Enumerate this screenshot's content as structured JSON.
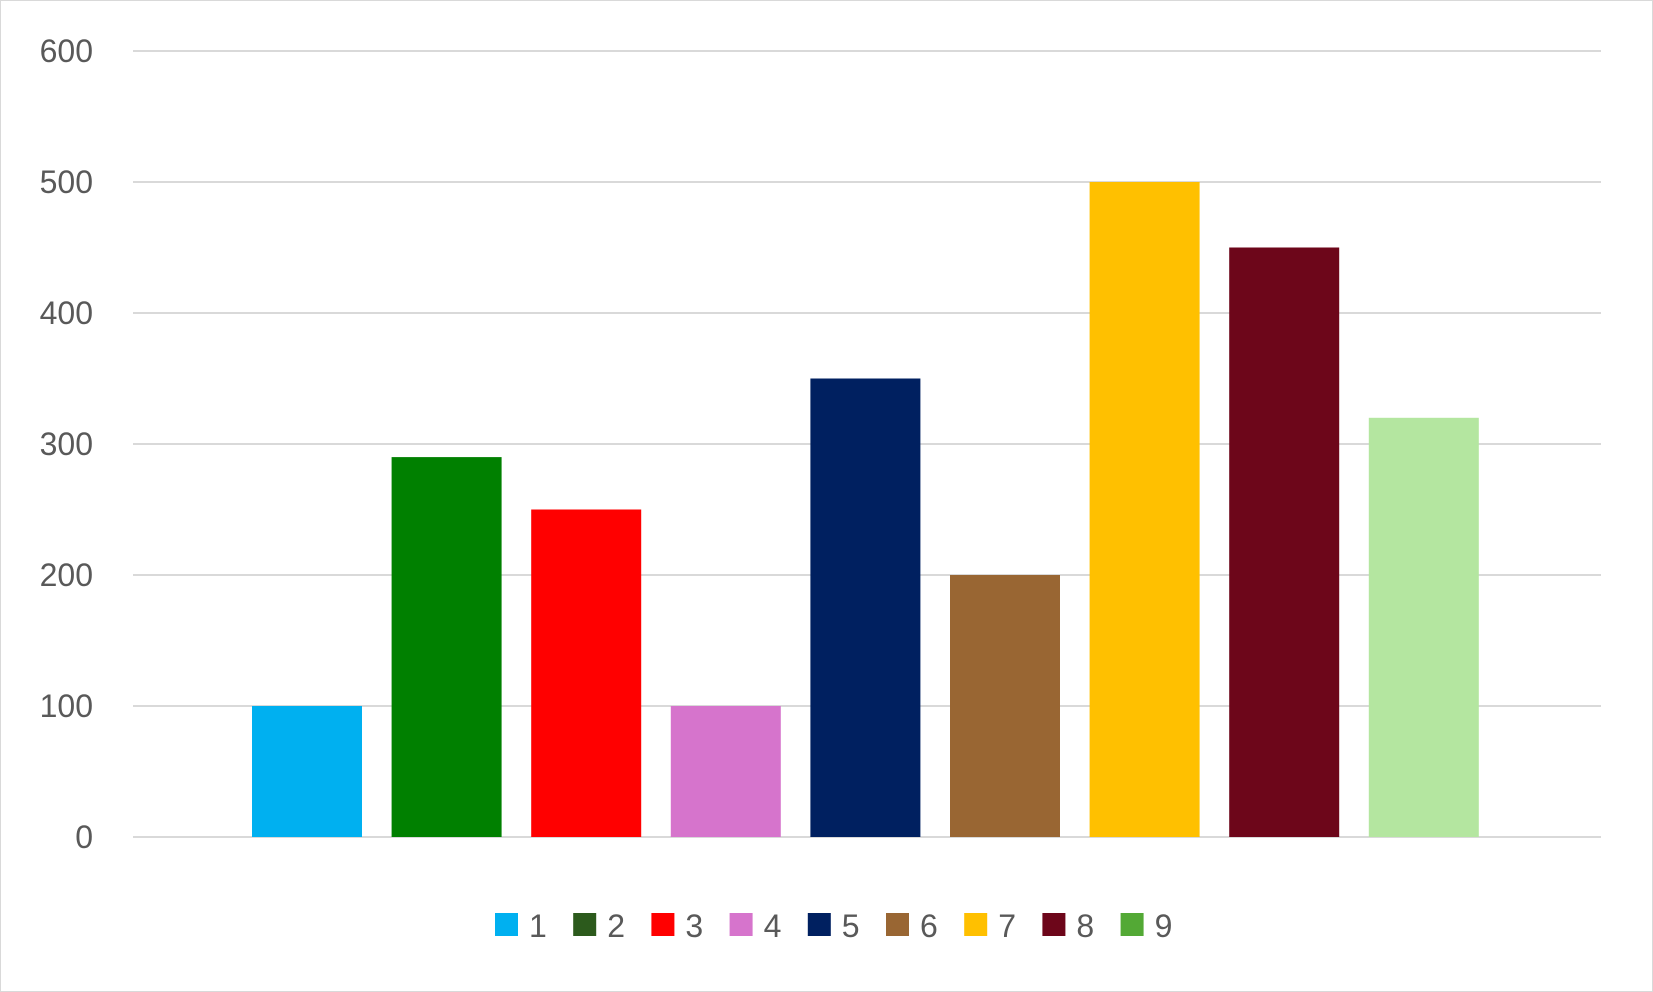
{
  "chart_data": {
    "type": "bar",
    "title": "",
    "xlabel": "",
    "ylabel": "",
    "ylim": [
      0,
      600
    ],
    "yticks": [
      0,
      100,
      200,
      300,
      400,
      500,
      600
    ],
    "grid": true,
    "legend_position": "bottom",
    "series": [
      {
        "name": "1",
        "value": 100,
        "color": "#00B0F0"
      },
      {
        "name": "2",
        "value": 290,
        "color": "#008000",
        "legend_color": "#2C5A1C"
      },
      {
        "name": "3",
        "value": 250,
        "color": "#FF0000"
      },
      {
        "name": "4",
        "value": 100,
        "color": "#D674CC"
      },
      {
        "name": "5",
        "value": 350,
        "color": "#002060"
      },
      {
        "name": "6",
        "value": 200,
        "color": "#996633"
      },
      {
        "name": "7",
        "value": 500,
        "color": "#FFC000"
      },
      {
        "name": "8",
        "value": 450,
        "color": "#6D061A"
      },
      {
        "name": "9",
        "value": 320,
        "color": "#B4E6A0",
        "legend_color": "#53A935"
      }
    ]
  }
}
